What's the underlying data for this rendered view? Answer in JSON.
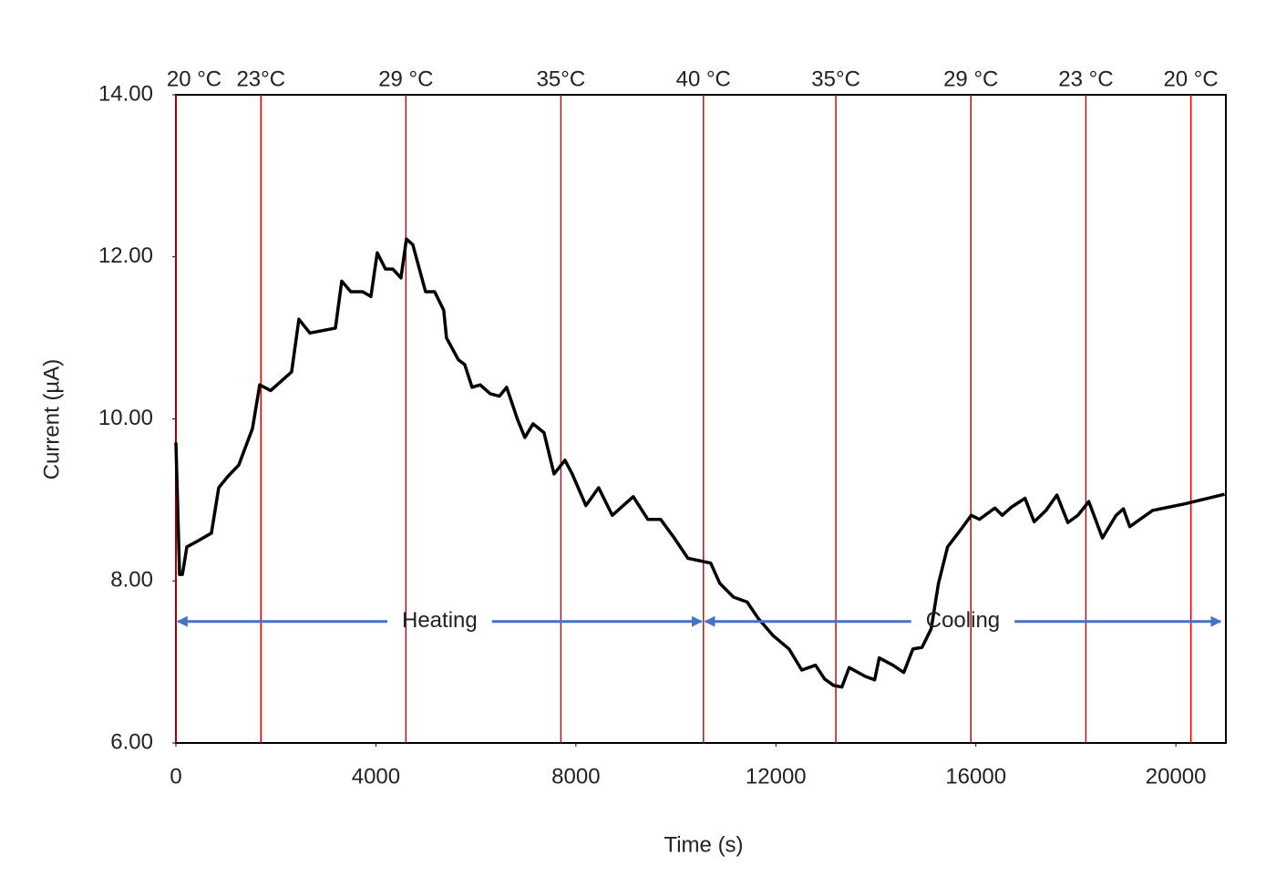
{
  "chart_data": {
    "type": "line",
    "x_label": "Time (s)",
    "y_label": "Current (µA)",
    "xlim": [
      0,
      21000
    ],
    "xticks": [
      0,
      4000,
      8000,
      12000,
      16000,
      20000
    ],
    "ylim": [
      6,
      14
    ],
    "yticks": [
      {
        "value": 6,
        "label": "6.00"
      },
      {
        "value": 8,
        "label": "8.00"
      },
      {
        "value": 10,
        "label": "10.00"
      },
      {
        "value": 12,
        "label": "12.00"
      },
      {
        "value": 14,
        "label": "14.00"
      }
    ],
    "x": [
      0,
      73,
      130,
      219,
      400,
      710,
      856,
      1039,
      1257,
      1531,
      1676,
      1895,
      2314,
      2460,
      2679,
      3190,
      3317,
      3499,
      3736,
      3900,
      4027,
      4191,
      4337,
      4501,
      4610,
      4738,
      4993,
      5175,
      5357,
      5412,
      5649,
      5777,
      5923,
      6087,
      6287,
      6470,
      6615,
      6834,
      6980,
      7143,
      7362,
      7563,
      7781,
      7927,
      8200,
      8455,
      8728,
      9147,
      9438,
      9694,
      9967,
      10240,
      10696,
      10878,
      11152,
      11425,
      11644,
      11936,
      12263,
      12518,
      12792,
      12974,
      13156,
      13320,
      13466,
      13794,
      13976,
      14067,
      14340,
      14559,
      14741,
      14923,
      15106,
      15252,
      15434,
      15707,
      15907,
      16071,
      16381,
      16527,
      16709,
      16983,
      17165,
      17402,
      17621,
      17840,
      18040,
      18258,
      18531,
      18805,
      18950,
      19078,
      19534,
      20171,
      20973
    ],
    "series": [
      {
        "name": "Current",
        "color": "#000000",
        "values": [
          9.71,
          8.08,
          8.08,
          8.42,
          8.48,
          8.59,
          9.15,
          9.29,
          9.43,
          9.88,
          10.42,
          10.35,
          10.58,
          11.23,
          11.06,
          11.12,
          11.7,
          11.57,
          11.57,
          11.51,
          12.05,
          11.85,
          11.85,
          11.74,
          12.22,
          12.15,
          11.57,
          11.57,
          11.34,
          11.0,
          10.73,
          10.67,
          10.39,
          10.42,
          10.31,
          10.28,
          10.39,
          9.99,
          9.77,
          9.94,
          9.83,
          9.32,
          9.49,
          9.32,
          8.93,
          9.15,
          8.81,
          9.04,
          8.76,
          8.76,
          8.53,
          8.28,
          8.22,
          7.97,
          7.8,
          7.74,
          7.54,
          7.33,
          7.16,
          6.9,
          6.96,
          6.79,
          6.71,
          6.69,
          6.93,
          6.82,
          6.78,
          7.05,
          6.96,
          6.87,
          7.16,
          7.18,
          7.41,
          7.97,
          8.42,
          8.64,
          8.81,
          8.76,
          8.9,
          8.81,
          8.91,
          9.02,
          8.73,
          8.87,
          9.06,
          8.72,
          8.81,
          8.98,
          8.53,
          8.81,
          8.89,
          8.67,
          8.87,
          8.95,
          9.07
        ]
      }
    ],
    "marker_color": "#e00000",
    "markers": [
      {
        "x": 0,
        "label": "20 °C"
      },
      {
        "x": 1700,
        "label": "23°C"
      },
      {
        "x": 4600,
        "label": "29 °C"
      },
      {
        "x": 7700,
        "label": "35°C"
      },
      {
        "x": 10550,
        "label": "40 °C"
      },
      {
        "x": 13200,
        "label": "35°C"
      },
      {
        "x": 15900,
        "label": "29 °C"
      },
      {
        "x": 18200,
        "label": "23 °C"
      },
      {
        "x": 20300,
        "label": "20 °C"
      }
    ],
    "arrow_color": "#4472c4",
    "annotations": [
      {
        "text": "Heating",
        "x_start": 0,
        "x_end": 10550,
        "y": 7.5
      },
      {
        "text": "Cooling",
        "x_start": 10550,
        "x_end": 20930,
        "y": 7.5
      }
    ]
  }
}
